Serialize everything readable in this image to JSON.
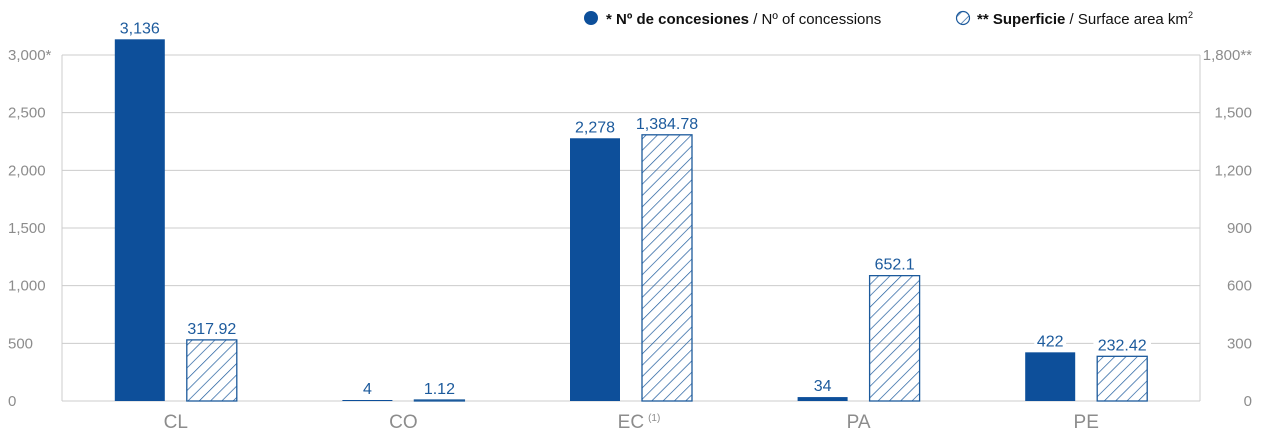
{
  "chart_data": {
    "type": "bar",
    "categories": [
      "CL",
      "CO",
      "EC",
      "PA",
      "PE"
    ],
    "category_notes": [
      "",
      "",
      "(1)",
      "",
      ""
    ],
    "series": [
      {
        "name_bold": "* Nº de concesiones",
        "name_rest": " / Nº of concessions",
        "axis": "left",
        "style": "solid",
        "color": "#0d4f9a",
        "values": [
          3136,
          4,
          2278,
          34,
          422
        ],
        "labels": [
          "3,136",
          "4",
          "2,278",
          "34",
          "422"
        ]
      },
      {
        "name_bold": "** Superficie",
        "name_rest": " / Surface area km",
        "name_sup": "2",
        "axis": "right",
        "style": "hatched",
        "color": "#1c5a9c",
        "values": [
          317.92,
          1.12,
          1384.78,
          652.1,
          232.42
        ],
        "labels": [
          "317.92",
          "1.12",
          "1,384.78",
          "652.1",
          "232.42"
        ]
      }
    ],
    "left_axis": {
      "ylim": [
        0,
        3000
      ],
      "ticks": [
        0,
        500,
        1000,
        1500,
        2000,
        2500,
        3000
      ],
      "tick_labels": [
        "0",
        "500",
        "1,000",
        "1,500",
        "2,000",
        "2,500",
        "3,000"
      ],
      "marker": "*"
    },
    "right_axis": {
      "ylim": [
        0,
        1800
      ],
      "ticks": [
        0,
        300,
        600,
        900,
        1200,
        1500,
        1800
      ],
      "tick_labels": [
        "0",
        "300",
        "600",
        "900",
        "1,200",
        "1,500",
        "1,800"
      ],
      "marker": "**"
    },
    "grid": true,
    "legend_position": "top-right",
    "colors": {
      "gridline": "#cccccc",
      "axis_text": "#8c8c8c",
      "label_text": "#1c5a9c"
    }
  }
}
